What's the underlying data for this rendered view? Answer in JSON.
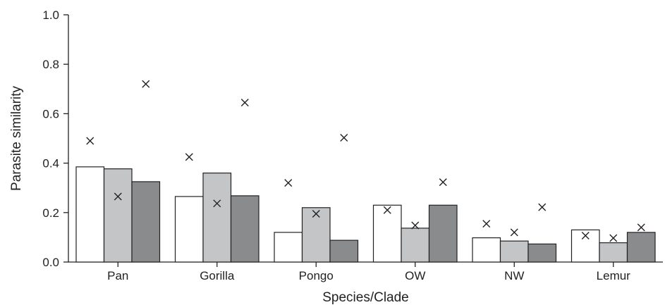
{
  "chart_data": {
    "type": "bar",
    "title": "",
    "xlabel": "Species/Clade",
    "ylabel": "Parasite similarity",
    "ylim": [
      0,
      1.0
    ],
    "yticks": [
      "0.0",
      "0.2",
      "0.4",
      "0.6",
      "0.8",
      "1.0"
    ],
    "grid": false,
    "legend": "none",
    "categories": [
      "Pan",
      "Gorilla",
      "Pongo",
      "OW",
      "NW",
      "Lemur"
    ],
    "series": [
      {
        "color": "#ffffff",
        "values": [
          0.385,
          0.265,
          0.12,
          0.23,
          0.098,
          0.13
        ]
      },
      {
        "color": "#c4c5c7",
        "values": [
          0.377,
          0.36,
          0.22,
          0.137,
          0.085,
          0.078
        ]
      },
      {
        "color": "#8a8b8d",
        "values": [
          0.325,
          0.268,
          0.088,
          0.23,
          0.073,
          0.12
        ]
      }
    ],
    "markers": {
      "symbol": "x",
      "values": [
        [
          0.49,
          0.265,
          0.72
        ],
        [
          0.425,
          0.237,
          0.645
        ],
        [
          0.32,
          0.195,
          0.503
        ],
        [
          0.21,
          0.148,
          0.323
        ],
        [
          0.155,
          0.12,
          0.222
        ],
        [
          0.107,
          0.097,
          0.14
        ]
      ]
    }
  }
}
